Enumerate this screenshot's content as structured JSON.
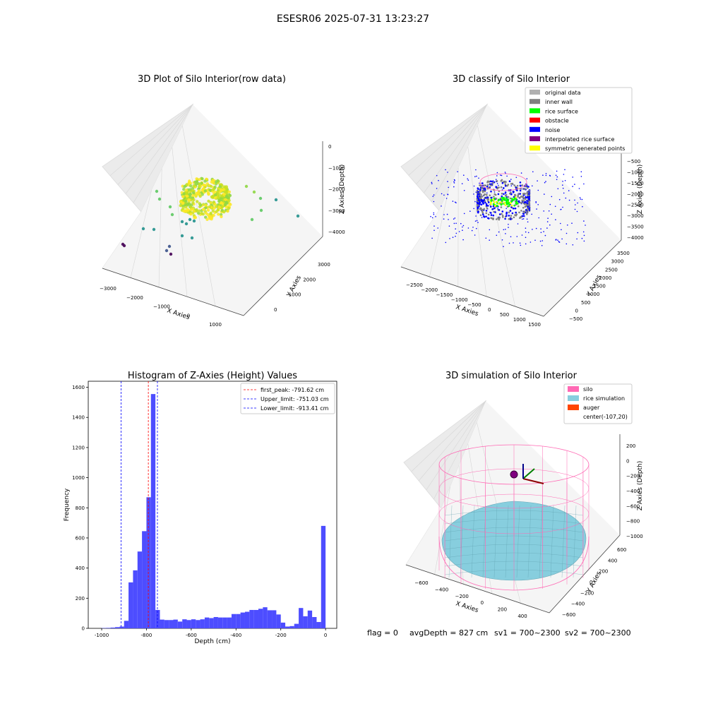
{
  "figure": {
    "suptitle": "ESESR06 2025-07-31 13:23:27",
    "footer": {
      "flag": "flag = 0",
      "avg_depth": "avgDepth = 827 cm",
      "sv1": "sv1 = 700~2300",
      "sv2": "sv2 = 700~2300"
    }
  },
  "colors": {
    "hist_bar": "#4d4dff",
    "first_peak_line": "#ff0000",
    "limit_lines": "#0000ff",
    "silo": "#ff69b4",
    "rice_simulation": "#87cede",
    "auger": "#ff4500",
    "original_data": "#b0b0b0",
    "inner_wall": "#808080",
    "rice_surface": "#00ff00",
    "obstacle": "#ff0000",
    "noise": "#0000ff",
    "interpolated_rice_surface": "#800080",
    "symmetric_generated_points": "#ffff00"
  },
  "chart_data": [
    {
      "type": "scatter",
      "title": "3D Plot of Silo Interior(row data)",
      "xlabel": "X Axies",
      "ylabel": "Y Axies",
      "zlabel": "Z Axies (Depth)",
      "x_ticks": [
        "−3000",
        "−2000",
        "−1000",
        "0",
        "1000"
      ],
      "y_ticks": [
        "0",
        "1000",
        "2000",
        "3000"
      ],
      "z_ticks": [
        "0",
        "−1000",
        "−2000",
        "−3000",
        "−4000"
      ],
      "xlim": [
        -3000,
        1500
      ],
      "ylim": [
        -500,
        3500
      ],
      "zlim": [
        -4200,
        0
      ],
      "colormap": "viridis",
      "grid": true
    },
    {
      "type": "scatter",
      "title": "3D classify of Silo Interior",
      "xlabel": "X Axies",
      "ylabel": "Y Axies",
      "zlabel": "Z Axies (Depth)",
      "x_ticks": [
        "−2500",
        "−2000",
        "−1500",
        "−1000",
        "−500",
        "0",
        "500",
        "1000",
        "1500"
      ],
      "y_ticks": [
        "−500",
        "0",
        "500",
        "1000",
        "1500",
        "2000",
        "2500",
        "3000",
        "3500"
      ],
      "z_ticks": [
        "−500",
        "−1000",
        "−1500",
        "−2000",
        "−2500",
        "−3000",
        "−3500",
        "−4000"
      ],
      "legend_position": "top-right",
      "legend": [
        {
          "label": "original data",
          "color": "#b0b0b0"
        },
        {
          "label": "inner wall",
          "color": "#808080"
        },
        {
          "label": "rice surface",
          "color": "#00ff00"
        },
        {
          "label": "obstacle",
          "color": "#ff0000"
        },
        {
          "label": "noise",
          "color": "#0000ff"
        },
        {
          "label": "interpolated rice surface",
          "color": "#800080"
        },
        {
          "label": "symmetric generated points",
          "color": "#ffff00"
        }
      ],
      "grid": true
    },
    {
      "type": "bar",
      "title": "Histogram of Z-Axies (Height) Values",
      "xlabel": "Depth (cm)",
      "ylabel": "Frequency",
      "xlim": [
        -1060,
        50
      ],
      "ylim": [
        0,
        1640
      ],
      "x_ticks": [
        -1000,
        -800,
        -600,
        -400,
        -200,
        0
      ],
      "y_ticks": [
        0,
        200,
        400,
        600,
        800,
        1000,
        1200,
        1400,
        1600
      ],
      "bin_width": 20,
      "bin_starts": [
        -1000,
        -980,
        -960,
        -940,
        -920,
        -900,
        -880,
        -860,
        -840,
        -820,
        -800,
        -780,
        -760,
        -740,
        -720,
        -700,
        -680,
        -660,
        -640,
        -620,
        -600,
        -580,
        -560,
        -540,
        -520,
        -500,
        -480,
        -460,
        -440,
        -420,
        -400,
        -380,
        -360,
        -340,
        -320,
        -300,
        -280,
        -260,
        -240,
        -220,
        -200,
        -180,
        -160,
        -140,
        -120,
        -100,
        -80,
        -60,
        -40,
        -20
      ],
      "values": [
        2,
        3,
        5,
        8,
        12,
        50,
        305,
        385,
        510,
        645,
        870,
        1555,
        122,
        58,
        55,
        55,
        58,
        45,
        60,
        55,
        60,
        55,
        60,
        72,
        68,
        75,
        72,
        72,
        72,
        95,
        95,
        105,
        110,
        122,
        122,
        130,
        140,
        120,
        120,
        92,
        38,
        12,
        15,
        30,
        135,
        80,
        118,
        75,
        42,
        680
      ],
      "vlines": [
        {
          "label": "first_peak: -791.62 cm",
          "x": -791.62,
          "color": "#ff0000"
        },
        {
          "label": "Upper_limit: -751.03 cm",
          "x": -751.03,
          "color": "#0000ff"
        },
        {
          "label": "Lower_limit: -913.41 cm",
          "x": -913.41,
          "color": "#0000ff"
        }
      ],
      "legend_position": "top-right"
    },
    {
      "type": "scatter",
      "title": "3D simulation of Silo Interior",
      "xlabel": "X Axies",
      "ylabel": "Y Axies",
      "zlabel": "Z Axies (Depth)",
      "x_ticks": [
        "−600",
        "−400",
        "−200",
        "0",
        "200",
        "400"
      ],
      "y_ticks": [
        "−600",
        "−400",
        "−200",
        "0",
        "200",
        "400",
        "600"
      ],
      "z_ticks": [
        "200",
        "0",
        "−200",
        "−400",
        "−600",
        "−800",
        "−1000"
      ],
      "legend_position": "top-right",
      "legend": [
        {
          "label": "silo",
          "color": "#ff69b4"
        },
        {
          "label": "rice simulation",
          "color": "#87cede"
        },
        {
          "label": "auger",
          "color": "#ff4500"
        },
        {
          "label": "center(-107,20)",
          "color": ""
        }
      ],
      "grid": true
    }
  ]
}
